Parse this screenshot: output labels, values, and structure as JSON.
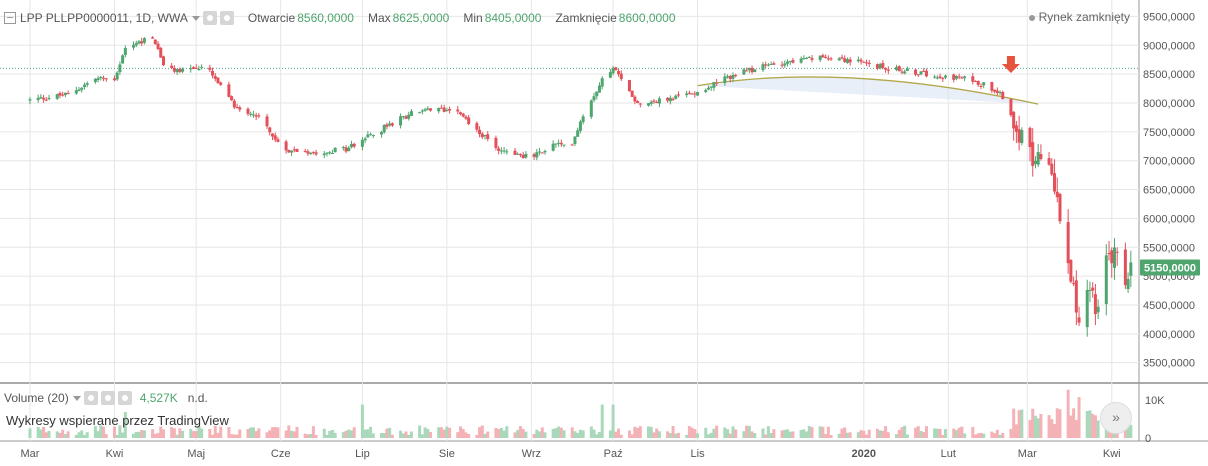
{
  "header": {
    "symbol": "LPP PLLPP0000011, 1D, WWA",
    "open_label": "Otwarcie",
    "open_value": "8560,0000",
    "high_label": "Max",
    "high_value": "8625,0000",
    "low_label": "Min",
    "low_value": "8405,0000",
    "close_label": "Zamknięcie",
    "close_value": "8600,0000"
  },
  "status": {
    "text": "Rynek zamknięty"
  },
  "volume_header": {
    "name": "Volume (20)",
    "value": "4,527K",
    "na": "n.d."
  },
  "watermark": "Wykresy wspierane przez TradingView",
  "colors": {
    "up": "#4fa56e",
    "up_fill": "#a9d8ba",
    "down": "#e3505a",
    "down_fill": "#f4b2b6",
    "grid": "#e6e6e6",
    "axis_text": "#555555",
    "last_price_bg": "#4fa56e",
    "dotted_level": "#4aa39a",
    "arc": "#b3a84a",
    "arc_fill": "#d8e4f5",
    "arrow": "#e5543d"
  },
  "icons": {
    "settings": "gear-icon",
    "hide": "eye-icon",
    "close": "close-icon",
    "go_realtime": "double-chevron-right-icon"
  },
  "chart_data": {
    "type": "candlestick",
    "price_axis": {
      "ticks": [
        "9500,0000",
        "9000,0000",
        "8500,0000",
        "8000,0000",
        "7500,0000",
        "7000,0000",
        "6500,0000",
        "6000,0000",
        "5500,0000",
        "5000,0000",
        "4500,0000",
        "4000,0000",
        "3500,0000"
      ],
      "ylim": [
        3200,
        9750
      ]
    },
    "last_price": {
      "value": 5150,
      "label": "5150,0000"
    },
    "horizontal_level": 8600,
    "time_axis": {
      "labels": [
        "Mar",
        "Kwi",
        "Maj",
        "Cze",
        "Lip",
        "Sie",
        "Wrz",
        "Paź",
        "Lis",
        "2020",
        "Lut",
        "Mar",
        "Kwi"
      ]
    },
    "volume_axis": {
      "ticks": [
        "10K",
        "0"
      ]
    },
    "close_path": [
      {
        "d": "2019-03-01",
        "c": 8050
      },
      {
        "d": "2019-03-15",
        "c": 8150
      },
      {
        "d": "2019-03-25",
        "c": 8420
      },
      {
        "d": "2019-04-01",
        "c": 8420
      },
      {
        "d": "2019-04-05",
        "c": 8950
      },
      {
        "d": "2019-04-15",
        "c": 9150
      },
      {
        "d": "2019-04-20",
        "c": 8550
      },
      {
        "d": "2019-04-30",
        "c": 8600
      },
      {
        "d": "2019-05-05",
        "c": 8600
      },
      {
        "d": "2019-05-15",
        "c": 7950
      },
      {
        "d": "2019-05-25",
        "c": 7750
      },
      {
        "d": "2019-06-01",
        "c": 7200
      },
      {
        "d": "2019-06-15",
        "c": 7150
      },
      {
        "d": "2019-06-25",
        "c": 7200
      },
      {
        "d": "2019-07-10",
        "c": 7600
      },
      {
        "d": "2019-07-20",
        "c": 7850
      },
      {
        "d": "2019-08-05",
        "c": 7900
      },
      {
        "d": "2019-08-10",
        "c": 7600
      },
      {
        "d": "2019-08-20",
        "c": 7200
      },
      {
        "d": "2019-09-01",
        "c": 7050
      },
      {
        "d": "2019-09-10",
        "c": 7300
      },
      {
        "d": "2019-09-15",
        "c": 7200
      },
      {
        "d": "2019-09-20",
        "c": 7800
      },
      {
        "d": "2019-09-28",
        "c": 8500
      },
      {
        "d": "2019-10-01",
        "c": 8600
      },
      {
        "d": "2019-10-10",
        "c": 8000
      },
      {
        "d": "2019-10-20",
        "c": 8050
      },
      {
        "d": "2019-11-01",
        "c": 8200
      },
      {
        "d": "2019-11-15",
        "c": 8500
      },
      {
        "d": "2019-12-01",
        "c": 8700
      },
      {
        "d": "2019-12-20",
        "c": 8800
      },
      {
        "d": "2020-01-10",
        "c": 8600
      },
      {
        "d": "2020-01-25",
        "c": 8500
      },
      {
        "d": "2020-02-10",
        "c": 8400
      },
      {
        "d": "2020-02-20",
        "c": 8200
      },
      {
        "d": "2020-02-25",
        "c": 7700
      },
      {
        "d": "2020-03-01",
        "c": 7200
      },
      {
        "d": "2020-03-04",
        "c": 6900
      },
      {
        "d": "2020-03-08",
        "c": 7200
      },
      {
        "d": "2020-03-10",
        "c": 6800
      },
      {
        "d": "2020-03-12",
        "c": 6300
      },
      {
        "d": "2020-03-14",
        "c": 5900
      },
      {
        "d": "2020-03-18",
        "c": 4800
      },
      {
        "d": "2020-03-20",
        "c": 4200
      },
      {
        "d": "2020-03-24",
        "c": 4800
      },
      {
        "d": "2020-03-27",
        "c": 4400
      },
      {
        "d": "2020-03-30",
        "c": 5200
      },
      {
        "d": "2020-04-02",
        "c": 5400
      },
      {
        "d": "2020-04-06",
        "c": 4900
      },
      {
        "d": "2020-04-08",
        "c": 5150
      }
    ],
    "signal_arrow_date": "2020-02-24",
    "rounding_top_arc": {
      "start": "2019-11-01",
      "peak": "2019-12-25",
      "end": "2020-03-05",
      "start_price": 8300,
      "peak_price": 8520,
      "end_price": 7980
    },
    "volume_spikes_k": [
      {
        "d": "2019-04-05",
        "v": 7
      },
      {
        "d": "2019-07-01",
        "v": 9
      },
      {
        "d": "2019-09-27",
        "v": 9
      },
      {
        "d": "2019-10-01",
        "v": 9
      },
      {
        "d": "2020-03-04",
        "v": 6
      },
      {
        "d": "2020-03-12",
        "v": 8
      },
      {
        "d": "2020-03-16",
        "v": 13
      },
      {
        "d": "2020-03-20",
        "v": 11
      }
    ]
  }
}
